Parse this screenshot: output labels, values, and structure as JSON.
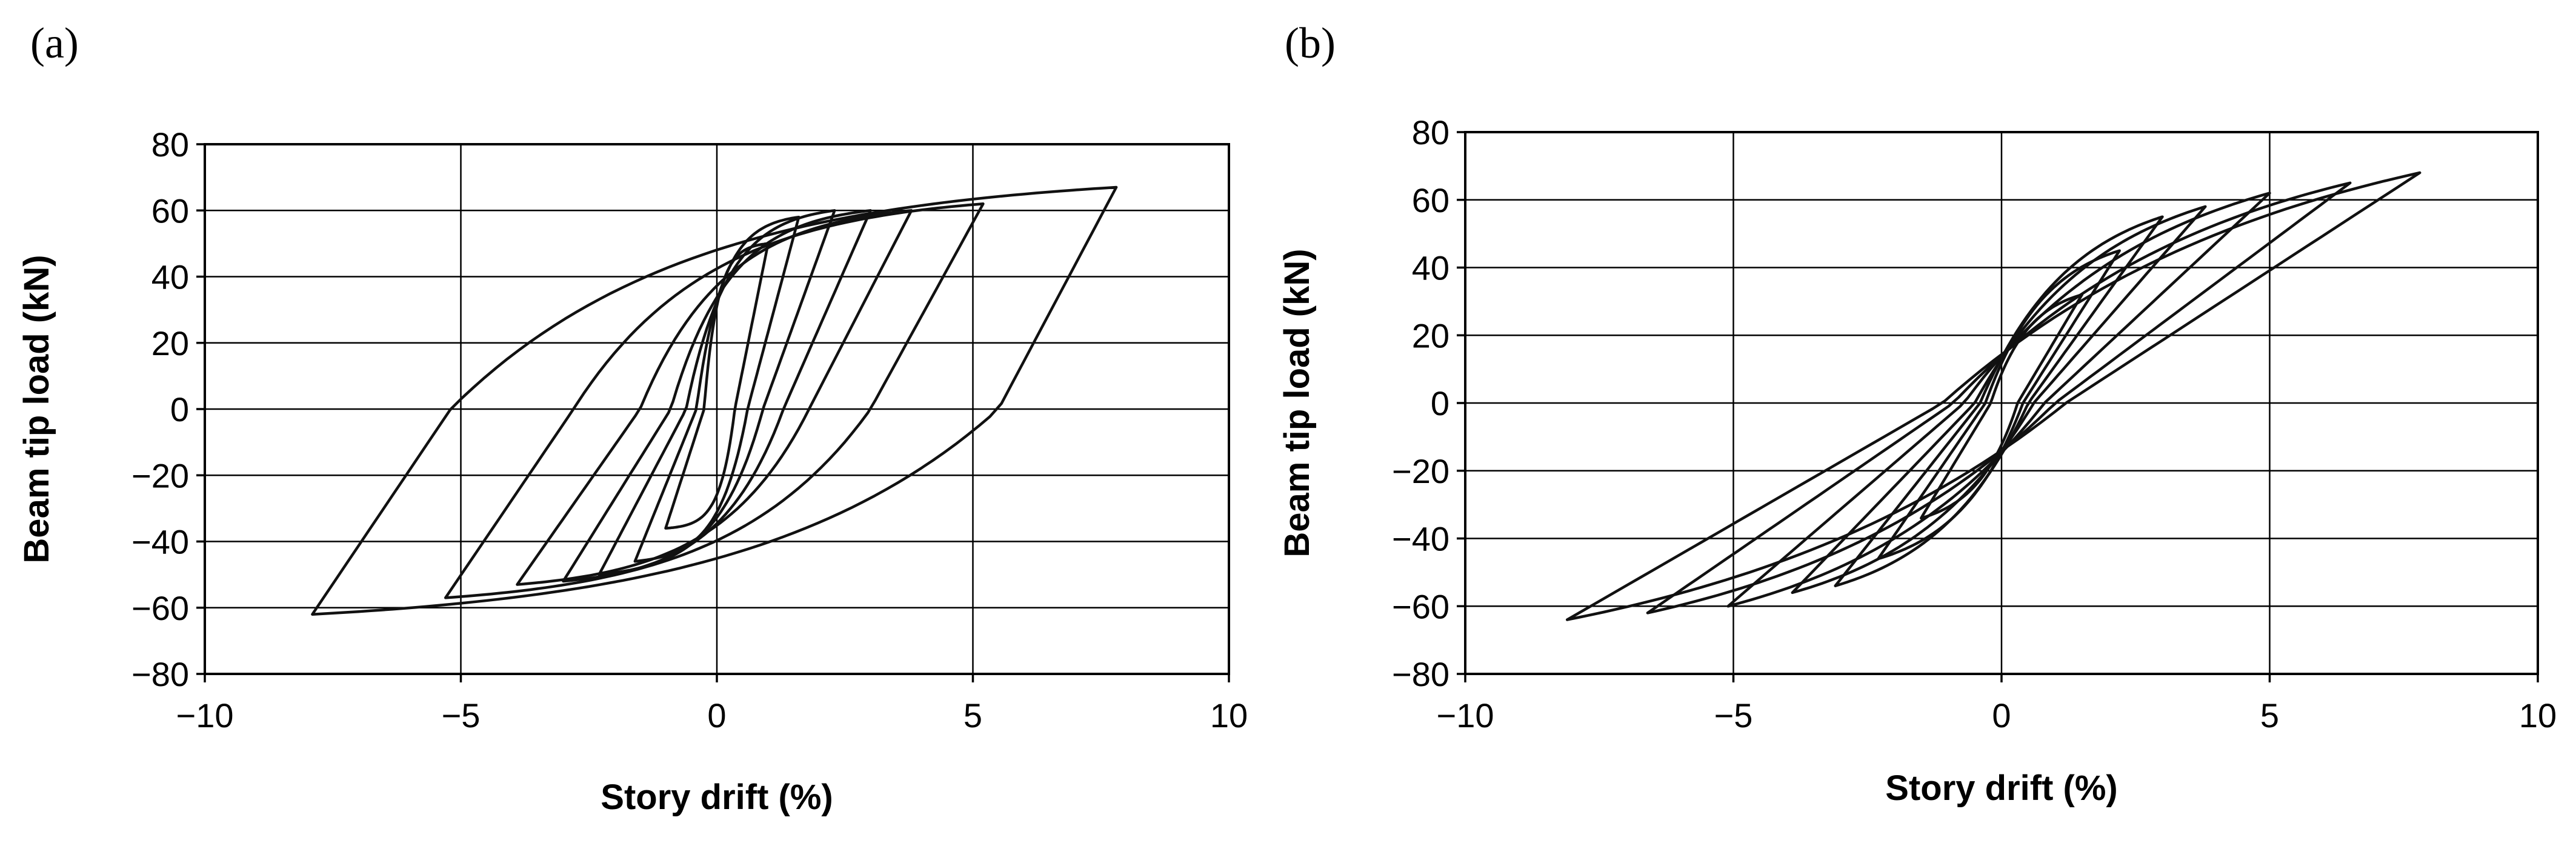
{
  "chart_data": [
    {
      "type": "line",
      "panel_label": "(a)",
      "xlabel": "Story drift (%)",
      "ylabel": "Beam tip load (kN)",
      "xlim": [
        -10,
        10
      ],
      "ylim": [
        -80,
        80
      ],
      "x_ticks": [
        -10,
        -5,
        0,
        5,
        10
      ],
      "y_ticks": [
        -80,
        -60,
        -40,
        -20,
        0,
        20,
        40,
        60,
        80
      ],
      "x_tick_labels": [
        "−10",
        "−5",
        "0",
        "5",
        "10"
      ],
      "y_tick_labels": [
        "−80",
        "−60",
        "−40",
        "−20",
        "0",
        "20",
        "40",
        "60",
        "80"
      ],
      "grid": true,
      "loops": [
        {
          "peak_pos": [
            7.8,
            67
          ],
          "peak_neg": [
            -7.9,
            -62
          ],
          "zero_pos": -5.2,
          "zero_neg": 5.5,
          "k": 28
        },
        {
          "peak_pos": [
            5.2,
            62
          ],
          "peak_neg": [
            -5.3,
            -57
          ],
          "zero_pos": -2.8,
          "zero_neg": 3.0,
          "k": 30
        },
        {
          "peak_pos": [
            3.8,
            60
          ],
          "peak_neg": [
            -3.9,
            -53
          ],
          "zero_pos": -1.5,
          "zero_neg": 1.8,
          "k": 32
        },
        {
          "peak_pos": [
            3.0,
            60
          ],
          "peak_neg": [
            -3.0,
            -52
          ],
          "zero_pos": -0.9,
          "zero_neg": 1.3,
          "k": 34
        },
        {
          "peak_pos": [
            2.3,
            60
          ],
          "peak_neg": [
            -2.3,
            -50
          ],
          "zero_pos": -0.6,
          "zero_neg": 0.9,
          "k": 36
        },
        {
          "peak_pos": [
            1.6,
            58
          ],
          "peak_neg": [
            -1.6,
            -46
          ],
          "zero_pos": -0.4,
          "zero_neg": 0.6,
          "k": 40
        },
        {
          "peak_pos": [
            1.0,
            50
          ],
          "peak_neg": [
            -1.0,
            -36
          ],
          "zero_pos": -0.25,
          "zero_neg": 0.35,
          "k": 48
        }
      ]
    },
    {
      "type": "line",
      "panel_label": "(b)",
      "xlabel": "Story drift (%)",
      "ylabel": "Beam tip load (kN)",
      "xlim": [
        -10,
        10
      ],
      "ylim": [
        -80,
        80
      ],
      "x_ticks": [
        -10,
        -5,
        0,
        5,
        10
      ],
      "y_ticks": [
        -80,
        -60,
        -40,
        -20,
        0,
        20,
        40,
        60,
        80
      ],
      "x_tick_labels": [
        "−10",
        "−5",
        "0",
        "5",
        "10"
      ],
      "y_tick_labels": [
        "−80",
        "−60",
        "−40",
        "−20",
        "0",
        "20",
        "40",
        "60",
        "80"
      ],
      "grid": true,
      "loops": [
        {
          "peak_pos": [
            7.8,
            68
          ],
          "peak_neg": [
            -8.1,
            -64
          ],
          "zero_pos": -1.1,
          "zero_neg": 1.2,
          "k": 14
        },
        {
          "peak_pos": [
            6.5,
            65
          ],
          "peak_neg": [
            -6.6,
            -62
          ],
          "zero_pos": -0.9,
          "zero_neg": 1.0,
          "k": 15
        },
        {
          "peak_pos": [
            5.0,
            62
          ],
          "peak_neg": [
            -5.1,
            -60
          ],
          "zero_pos": -0.7,
          "zero_neg": 0.8,
          "k": 16
        },
        {
          "peak_pos": [
            3.8,
            58
          ],
          "peak_neg": [
            -3.9,
            -56
          ],
          "zero_pos": -0.5,
          "zero_neg": 0.6,
          "k": 18
        },
        {
          "peak_pos": [
            3.0,
            55
          ],
          "peak_neg": [
            -3.1,
            -54
          ],
          "zero_pos": -0.4,
          "zero_neg": 0.5,
          "k": 20
        },
        {
          "peak_pos": [
            2.2,
            45
          ],
          "peak_neg": [
            -2.3,
            -46
          ],
          "zero_pos": -0.3,
          "zero_neg": 0.4,
          "k": 22
        },
        {
          "peak_pos": [
            1.5,
            32
          ],
          "peak_neg": [
            -1.5,
            -34
          ],
          "zero_pos": -0.2,
          "zero_neg": 0.3,
          "k": 24
        }
      ]
    }
  ]
}
